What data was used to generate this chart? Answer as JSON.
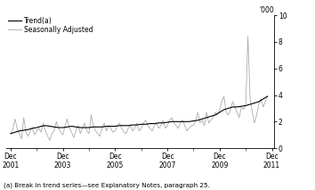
{
  "ylabel_right": "'000",
  "ylim": [
    0,
    10
  ],
  "yticks": [
    0,
    2,
    4,
    6,
    8,
    10
  ],
  "xlim_start": 2001.75,
  "xlim_end": 2012.0,
  "xtick_years": [
    2001,
    2003,
    2005,
    2007,
    2009,
    2011
  ],
  "footnote": "(a) Break in trend series—see Explanatory Notes, paragraph 25.",
  "legend_trend": "Trend(a)",
  "legend_seasonal": "Seasonally Adjusted",
  "trend_color": "#000000",
  "seasonal_color": "#aaaaaa",
  "background_color": "#ffffff",
  "trend_linewidth": 0.8,
  "seasonal_linewidth": 0.6,
  "seasonal_data": [
    [
      2001.917,
      1.1
    ],
    [
      2002.0,
      1.4
    ],
    [
      2002.083,
      2.2
    ],
    [
      2002.167,
      1.5
    ],
    [
      2002.25,
      1.1
    ],
    [
      2002.333,
      0.7
    ],
    [
      2002.417,
      2.3
    ],
    [
      2002.5,
      1.2
    ],
    [
      2002.583,
      0.9
    ],
    [
      2002.667,
      1.3
    ],
    [
      2002.75,
      1.5
    ],
    [
      2002.833,
      1.0
    ],
    [
      2002.917,
      1.3
    ],
    [
      2003.0,
      1.5
    ],
    [
      2003.083,
      1.2
    ],
    [
      2003.167,
      1.9
    ],
    [
      2003.25,
      1.3
    ],
    [
      2003.333,
      0.9
    ],
    [
      2003.417,
      0.6
    ],
    [
      2003.5,
      1.1
    ],
    [
      2003.583,
      1.3
    ],
    [
      2003.667,
      2.0
    ],
    [
      2003.75,
      1.5
    ],
    [
      2003.833,
      1.2
    ],
    [
      2003.917,
      1.0
    ],
    [
      2004.0,
      1.7
    ],
    [
      2004.083,
      2.2
    ],
    [
      2004.167,
      1.5
    ],
    [
      2004.25,
      1.2
    ],
    [
      2004.333,
      0.8
    ],
    [
      2004.417,
      1.3
    ],
    [
      2004.5,
      1.7
    ],
    [
      2004.583,
      1.1
    ],
    [
      2004.667,
      1.5
    ],
    [
      2004.75,
      1.9
    ],
    [
      2004.833,
      1.3
    ],
    [
      2004.917,
      1.1
    ],
    [
      2005.0,
      2.5
    ],
    [
      2005.083,
      1.7
    ],
    [
      2005.167,
      1.3
    ],
    [
      2005.25,
      1.1
    ],
    [
      2005.333,
      0.9
    ],
    [
      2005.417,
      1.5
    ],
    [
      2005.5,
      1.9
    ],
    [
      2005.583,
      1.3
    ],
    [
      2005.667,
      1.7
    ],
    [
      2005.75,
      1.5
    ],
    [
      2005.833,
      1.2
    ],
    [
      2005.917,
      1.3
    ],
    [
      2006.0,
      1.7
    ],
    [
      2006.083,
      1.9
    ],
    [
      2006.167,
      1.5
    ],
    [
      2006.25,
      1.2
    ],
    [
      2006.333,
      1.1
    ],
    [
      2006.417,
      1.5
    ],
    [
      2006.5,
      1.7
    ],
    [
      2006.583,
      1.3
    ],
    [
      2006.667,
      1.5
    ],
    [
      2006.75,
      1.9
    ],
    [
      2006.833,
      1.3
    ],
    [
      2006.917,
      1.5
    ],
    [
      2007.0,
      1.9
    ],
    [
      2007.083,
      2.1
    ],
    [
      2007.167,
      1.7
    ],
    [
      2007.25,
      1.5
    ],
    [
      2007.333,
      1.3
    ],
    [
      2007.417,
      1.7
    ],
    [
      2007.5,
      1.9
    ],
    [
      2007.583,
      1.5
    ],
    [
      2007.667,
      1.7
    ],
    [
      2007.75,
      2.1
    ],
    [
      2007.833,
      1.5
    ],
    [
      2007.917,
      1.7
    ],
    [
      2008.0,
      2.1
    ],
    [
      2008.083,
      2.3
    ],
    [
      2008.167,
      1.9
    ],
    [
      2008.25,
      1.7
    ],
    [
      2008.333,
      1.5
    ],
    [
      2008.417,
      1.9
    ],
    [
      2008.5,
      2.1
    ],
    [
      2008.583,
      1.7
    ],
    [
      2008.667,
      1.3
    ],
    [
      2008.75,
      1.5
    ],
    [
      2008.833,
      1.7
    ],
    [
      2008.917,
      1.7
    ],
    [
      2009.0,
      2.1
    ],
    [
      2009.083,
      2.7
    ],
    [
      2009.167,
      1.9
    ],
    [
      2009.25,
      2.1
    ],
    [
      2009.333,
      1.7
    ],
    [
      2009.417,
      2.7
    ],
    [
      2009.5,
      1.9
    ],
    [
      2009.583,
      2.1
    ],
    [
      2009.667,
      2.3
    ],
    [
      2009.75,
      2.7
    ],
    [
      2009.833,
      2.5
    ],
    [
      2009.917,
      2.9
    ],
    [
      2010.0,
      3.5
    ],
    [
      2010.083,
      3.9
    ],
    [
      2010.167,
      2.7
    ],
    [
      2010.25,
      2.5
    ],
    [
      2010.333,
      2.9
    ],
    [
      2010.417,
      3.5
    ],
    [
      2010.5,
      3.1
    ],
    [
      2010.583,
      2.7
    ],
    [
      2010.667,
      2.3
    ],
    [
      2010.75,
      3.1
    ],
    [
      2010.833,
      2.9
    ],
    [
      2010.917,
      3.3
    ],
    [
      2011.0,
      8.4
    ],
    [
      2011.083,
      3.7
    ],
    [
      2011.167,
      2.7
    ],
    [
      2011.25,
      1.9
    ],
    [
      2011.333,
      2.5
    ],
    [
      2011.417,
      3.3
    ],
    [
      2011.5,
      3.7
    ],
    [
      2011.583,
      3.1
    ],
    [
      2011.667,
      3.5
    ],
    [
      2011.75,
      3.9
    ]
  ],
  "trend_data": [
    [
      2001.917,
      1.1
    ],
    [
      2002.083,
      1.2
    ],
    [
      2002.25,
      1.3
    ],
    [
      2002.417,
      1.35
    ],
    [
      2002.583,
      1.4
    ],
    [
      2002.75,
      1.5
    ],
    [
      2002.917,
      1.55
    ],
    [
      2003.083,
      1.65
    ],
    [
      2003.25,
      1.7
    ],
    [
      2003.417,
      1.65
    ],
    [
      2003.583,
      1.6
    ],
    [
      2003.75,
      1.55
    ],
    [
      2003.917,
      1.55
    ],
    [
      2004.083,
      1.6
    ],
    [
      2004.25,
      1.65
    ],
    [
      2004.417,
      1.6
    ],
    [
      2004.583,
      1.55
    ],
    [
      2004.75,
      1.55
    ],
    [
      2004.917,
      1.55
    ],
    [
      2005.083,
      1.6
    ],
    [
      2005.25,
      1.6
    ],
    [
      2005.417,
      1.6
    ],
    [
      2005.583,
      1.65
    ],
    [
      2005.75,
      1.65
    ],
    [
      2005.917,
      1.65
    ],
    [
      2006.083,
      1.7
    ],
    [
      2006.25,
      1.7
    ],
    [
      2006.417,
      1.7
    ],
    [
      2006.583,
      1.75
    ],
    [
      2006.75,
      1.75
    ],
    [
      2006.917,
      1.8
    ],
    [
      2007.083,
      1.8
    ],
    [
      2007.25,
      1.85
    ],
    [
      2007.417,
      1.85
    ],
    [
      2007.583,
      1.9
    ],
    [
      2007.75,
      1.9
    ],
    [
      2007.917,
      1.95
    ],
    [
      2008.083,
      2.0
    ],
    [
      2008.25,
      2.0
    ],
    [
      2008.417,
      2.0
    ],
    [
      2008.583,
      2.0
    ],
    [
      2008.75,
      2.0
    ],
    [
      2008.917,
      2.05
    ],
    [
      2009.083,
      2.1
    ],
    [
      2009.25,
      2.2
    ],
    [
      2009.417,
      2.3
    ],
    [
      2009.583,
      2.4
    ],
    [
      2009.75,
      2.5
    ],
    [
      2009.917,
      2.7
    ],
    [
      2010.083,
      2.9
    ],
    [
      2010.25,
      3.0
    ],
    [
      2010.417,
      3.1
    ],
    [
      2010.583,
      3.1
    ],
    [
      2010.75,
      3.15
    ],
    [
      2010.917,
      3.2
    ],
    [
      2011.083,
      3.3
    ],
    [
      2011.25,
      3.4
    ],
    [
      2011.417,
      3.5
    ],
    [
      2011.583,
      3.7
    ],
    [
      2011.75,
      3.9
    ]
  ]
}
